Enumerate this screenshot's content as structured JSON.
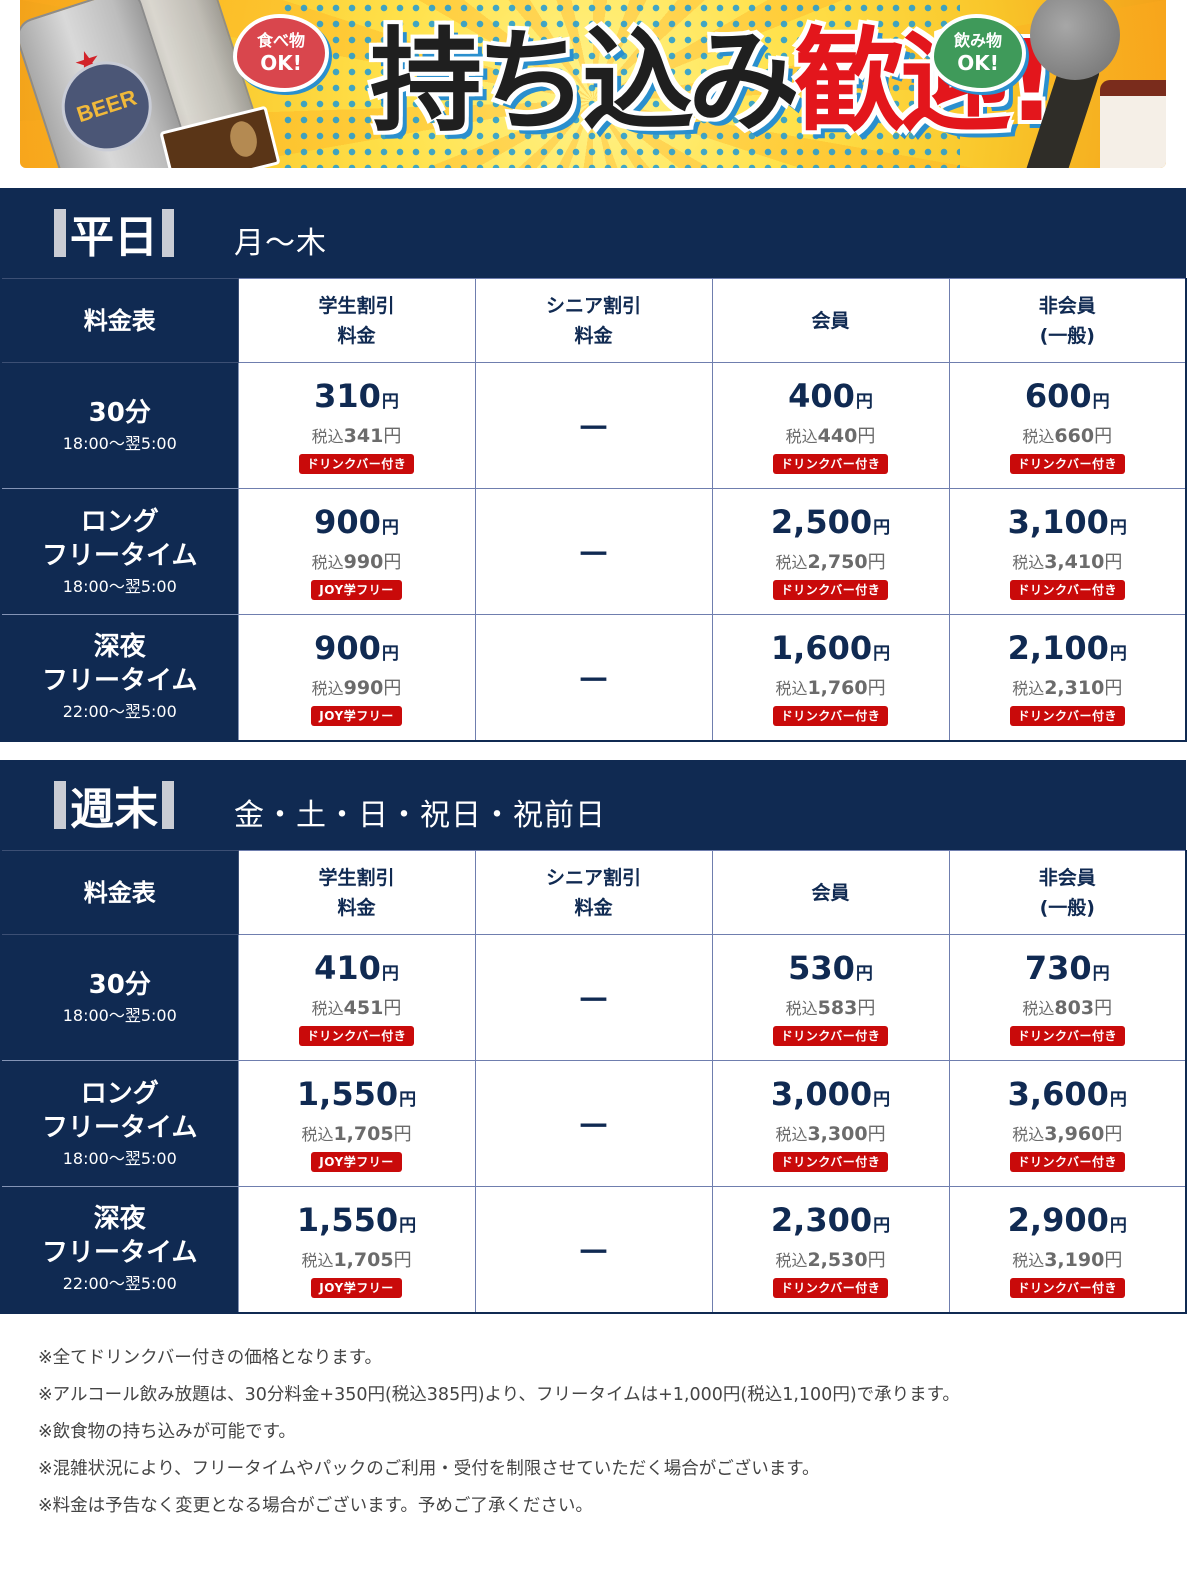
{
  "banner": {
    "headline_black": "持ち込み",
    "headline_red": "歓迎!",
    "food_bubble": {
      "line1": "食べ物",
      "line2": "OK!"
    },
    "drink_bubble": {
      "line1": "飲み物",
      "line2": "OK!"
    },
    "can_label": "BEER",
    "icons": [
      "beer-can-icon",
      "chips-icon",
      "microphone-icon",
      "coffee-cup-icon"
    ]
  },
  "column_headers": {
    "corner": "料金表",
    "student": {
      "line1": "学生割引",
      "line2": "料金"
    },
    "senior": {
      "line1": "シニア割引",
      "line2": "料金"
    },
    "member": {
      "line1": "会員",
      "line2": ""
    },
    "nonmember": {
      "line1": "非会員",
      "line2": "(一般)"
    }
  },
  "labels": {
    "tax_prefix": "税込",
    "yen": "円",
    "dash": "－"
  },
  "weekday": {
    "title": "平日",
    "days": "月～木",
    "rows": [
      {
        "name_line1": "30分",
        "name_line2": "",
        "time": "18:00～翌5:00",
        "student": {
          "price": "310",
          "tax": "341",
          "badge": "ドリンクバー付き"
        },
        "senior": "－",
        "member": {
          "price": "400",
          "tax": "440",
          "badge": "ドリンクバー付き"
        },
        "nonmember": {
          "price": "600",
          "tax": "660",
          "badge": "ドリンクバー付き"
        }
      },
      {
        "name_line1": "ロング",
        "name_line2": "フリータイム",
        "time": "18:00～翌5:00",
        "student": {
          "price": "900",
          "tax": "990",
          "badge": "JOY学フリー"
        },
        "senior": "－",
        "member": {
          "price": "2,500",
          "tax": "2,750",
          "badge": "ドリンクバー付き"
        },
        "nonmember": {
          "price": "3,100",
          "tax": "3,410",
          "badge": "ドリンクバー付き"
        }
      },
      {
        "name_line1": "深夜",
        "name_line2": "フリータイム",
        "time": "22:00～翌5:00",
        "student": {
          "price": "900",
          "tax": "990",
          "badge": "JOY学フリー"
        },
        "senior": "－",
        "member": {
          "price": "1,600",
          "tax": "1,760",
          "badge": "ドリンクバー付き"
        },
        "nonmember": {
          "price": "2,100",
          "tax": "2,310",
          "badge": "ドリンクバー付き"
        }
      }
    ]
  },
  "weekend": {
    "title": "週末",
    "days": "金・土・日・祝日・祝前日",
    "rows": [
      {
        "name_line1": "30分",
        "name_line2": "",
        "time": "18:00～翌5:00",
        "student": {
          "price": "410",
          "tax": "451",
          "badge": "ドリンクバー付き"
        },
        "senior": "－",
        "member": {
          "price": "530",
          "tax": "583",
          "badge": "ドリンクバー付き"
        },
        "nonmember": {
          "price": "730",
          "tax": "803",
          "badge": "ドリンクバー付き"
        }
      },
      {
        "name_line1": "ロング",
        "name_line2": "フリータイム",
        "time": "18:00～翌5:00",
        "student": {
          "price": "1,550",
          "tax": "1,705",
          "badge": "JOY学フリー"
        },
        "senior": "－",
        "member": {
          "price": "3,000",
          "tax": "3,300",
          "badge": "ドリンクバー付き"
        },
        "nonmember": {
          "price": "3,600",
          "tax": "3,960",
          "badge": "ドリンクバー付き"
        }
      },
      {
        "name_line1": "深夜",
        "name_line2": "フリータイム",
        "time": "22:00～翌5:00",
        "student": {
          "price": "1,550",
          "tax": "1,705",
          "badge": "JOY学フリー"
        },
        "senior": "－",
        "member": {
          "price": "2,300",
          "tax": "2,530",
          "badge": "ドリンクバー付き"
        },
        "nonmember": {
          "price": "2,900",
          "tax": "3,190",
          "badge": "ドリンクバー付き"
        }
      }
    ]
  },
  "notes": [
    "※全てドリンクバー付きの価格となります。",
    "※アルコール飲み放題は、30分料金+350円(税込385円)より、フリータイムは+1,000円(税込1,100円)で承ります。",
    "※飲食物の持ち込みが可能です。",
    "※混雑状況により、フリータイムやパックのご利用・受付を制限させていただく場合がございます。",
    "※料金は予告なく変更となる場合がございます。予めご了承ください。"
  ],
  "colors": {
    "navy": "#102a52",
    "badge_red": "#c90a0a",
    "headline_red": "#e3161c",
    "banner_yellow": "#ffe14a",
    "tax_gray": "#6b6b6b"
  }
}
